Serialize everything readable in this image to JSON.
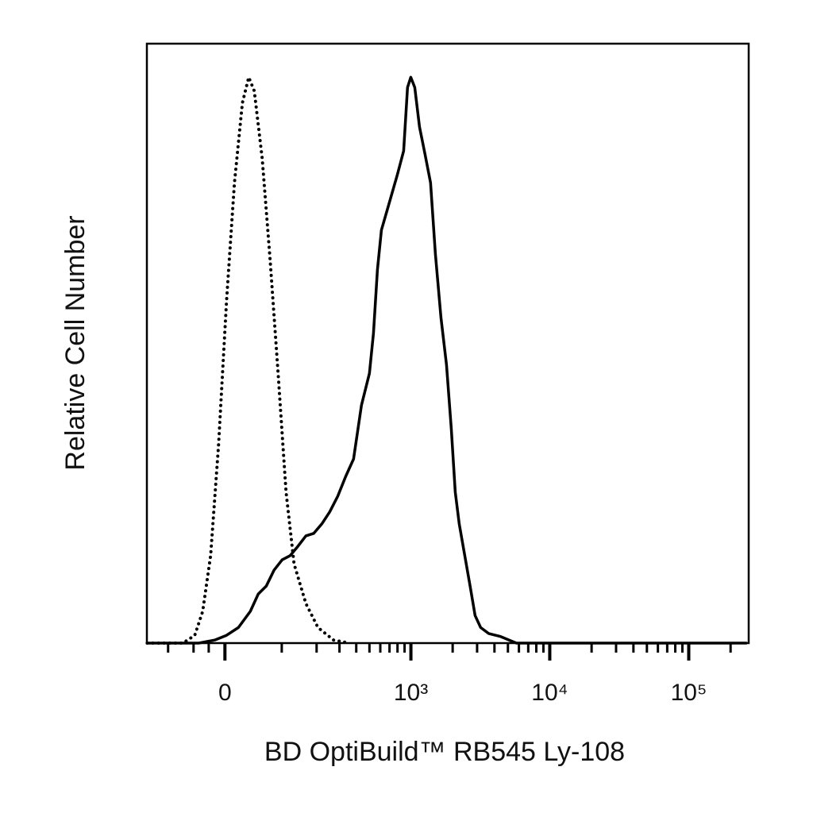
{
  "chart_data": {
    "type": "line",
    "x_label": "BD OptiBuild™ RB545 Ly-108",
    "y_label": "Relative Cell Number",
    "xscale": "biexponential",
    "xlim": [
      -155,
      270000
    ],
    "ylim": [
      0,
      100
    ],
    "xticks": [
      0,
      {
        "value": 1000,
        "label": "10³"
      },
      {
        "value": 10000,
        "label": "10⁴"
      },
      {
        "value": 100000,
        "label": "10⁵"
      }
    ],
    "xminorticks": [
      -100,
      -50,
      -25,
      100,
      200,
      300,
      400,
      500,
      600,
      700,
      800,
      900,
      2000,
      3000,
      4000,
      5000,
      6000,
      7000,
      8000,
      9000,
      20000,
      30000,
      40000,
      50000,
      60000,
      70000,
      80000,
      90000,
      200000
    ],
    "series": [
      {
        "color": "#000000",
        "dash": "dotted",
        "x": [
          -154,
          -69.5,
          -47.9,
          -34.7,
          -22.0,
          -9.7,
          2.4,
          14.6,
          27.0,
          37.3,
          46.6,
          60.6,
          75.7,
          92.0,
          110,
          130,
          164,
          205,
          271,
          357
        ],
        "values": [
          0,
          0,
          1.3,
          5.3,
          14.6,
          33.1,
          57.0,
          76.8,
          90.1,
          94.4,
          92.1,
          80.8,
          63.6,
          45.0,
          25.2,
          13.2,
          6.6,
          2.6,
          0.5,
          0
        ]
      },
      {
        "color": "#000000",
        "dash": "solid",
        "x": [
          -154,
          -41.2,
          -15.8,
          2.4,
          20.8,
          39.9,
          53.5,
          68.0,
          83.7,
          101,
          120,
          141,
          164,
          190,
          220,
          253,
          291,
          334,
          382,
          437,
          500,
          535,
          572,
          611,
          698,
          797,
          886,
          946,
          998,
          1066,
          1154,
          1265,
          1387,
          1502,
          1648,
          1807,
          1955,
          2088,
          2230,
          2446,
          2682,
          2902,
          3182,
          3628,
          4423,
          5755,
          11100,
          262000
        ],
        "values": [
          0,
          0,
          0.5,
          1.3,
          2.6,
          5.3,
          8.2,
          9.5,
          12.2,
          13.9,
          14.6,
          16.2,
          17.9,
          18.3,
          19.9,
          21.9,
          24.5,
          27.8,
          30.7,
          39.7,
          45.0,
          51.7,
          62.3,
          68.9,
          73.5,
          78.1,
          82.1,
          92.7,
          94.4,
          92.7,
          86.1,
          81.5,
          76.8,
          64.9,
          54.3,
          46.4,
          35.8,
          25.2,
          19.9,
          14.6,
          9.3,
          4.6,
          2.6,
          1.6,
          1.1,
          0,
          0,
          0
        ]
      }
    ]
  }
}
